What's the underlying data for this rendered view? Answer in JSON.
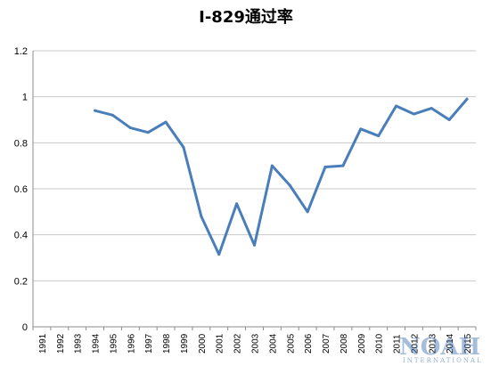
{
  "chart_data": {
    "type": "line",
    "title": "I-829通过率",
    "xlabel": "",
    "ylabel": "",
    "categories": [
      "1991",
      "1992",
      "1993",
      "1994",
      "1995",
      "1996",
      "1997",
      "1998",
      "1999",
      "2000",
      "2001",
      "2002",
      "2003",
      "2004",
      "2005",
      "2006",
      "2007",
      "2008",
      "2009",
      "2010",
      "2011",
      "2012",
      "2013",
      "2014",
      "2015"
    ],
    "series": [
      {
        "color": "#4a7ebb",
        "values": [
          null,
          null,
          null,
          0.94,
          0.92,
          0.865,
          0.845,
          0.89,
          0.78,
          0.48,
          0.315,
          0.535,
          0.355,
          0.7,
          0.615,
          0.5,
          0.695,
          0.7,
          0.86,
          0.83,
          0.96,
          0.925,
          0.95,
          0.9,
          0.99
        ]
      }
    ],
    "ylim": [
      0,
      1.2
    ],
    "yticks": [
      "0",
      "0.2",
      "0.4",
      "0.6",
      "0.8",
      "1",
      "1.2"
    ],
    "grid": true,
    "legend": "none"
  },
  "watermark": {
    "logo_text": "NOAH",
    "logo_subtext": "INTERNATIONAL"
  }
}
